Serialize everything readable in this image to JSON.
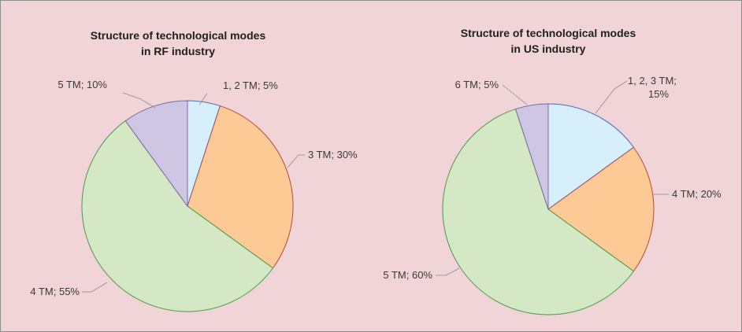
{
  "chart_data": [
    {
      "type": "pie",
      "title": [
        "Structure of technological modes",
        "in RF industry"
      ],
      "slices": [
        {
          "name": "1, 2 TM",
          "value": 5,
          "label": [
            "1, 2 TM; 5%"
          ],
          "color": "#d6effa",
          "stroke": "#4a6fb5"
        },
        {
          "name": "3 TM",
          "value": 30,
          "label": [
            "3 TM; 30%"
          ],
          "color": "#fdc994",
          "stroke": "#b5484a"
        },
        {
          "name": "4 TM",
          "value": 55,
          "label": [
            "4 TM; 55%"
          ],
          "color": "#d4e8c6",
          "stroke": "#4d9a4a"
        },
        {
          "name": "5 TM",
          "value": 10,
          "label": [
            "5 TM; 10%"
          ],
          "color": "#cfc6e3",
          "stroke": "#7a6aa8"
        }
      ]
    },
    {
      "type": "pie",
      "title": [
        "Structure of technological modes",
        "in US industry"
      ],
      "slices": [
        {
          "name": "1, 2, 3 TM",
          "value": 15,
          "label": [
            "1, 2, 3 TM;",
            "15%"
          ],
          "color": "#d6effa",
          "stroke": "#4a6fb5"
        },
        {
          "name": "4 TM",
          "value": 20,
          "label": [
            "4 TM; 20%"
          ],
          "color": "#fdc994",
          "stroke": "#b5484a"
        },
        {
          "name": "5 TM",
          "value": 60,
          "label": [
            "5 TM; 60%"
          ],
          "color": "#d4e8c6",
          "stroke": "#4d9a4a"
        },
        {
          "name": "6 TM",
          "value": 5,
          "label": [
            "6 TM; 5%"
          ],
          "color": "#cfc6e3",
          "stroke": "#7a6aa8"
        }
      ]
    }
  ]
}
